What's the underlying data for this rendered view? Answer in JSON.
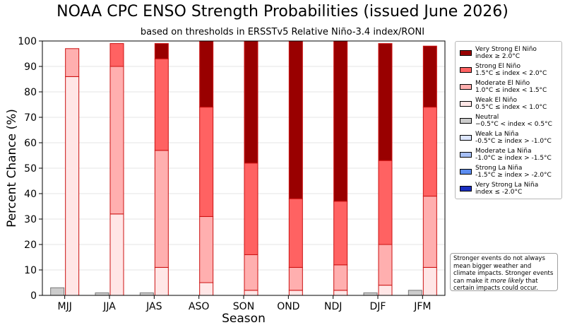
{
  "chart_data": {
    "type": "bar",
    "stacked": true,
    "title": "NOAA CPC ENSO Strength Probabilities (issued June 2026)",
    "subtitle": "based on thresholds in ERSSTv5 Relative Niño-3.4 index/RONI",
    "xlabel": "Season",
    "ylabel": "Percent Chance (%)",
    "ylim": [
      0,
      100
    ],
    "yticks": [
      "0",
      "10",
      "20",
      "30",
      "40",
      "50",
      "60",
      "70",
      "80",
      "90",
      "100"
    ],
    "grid": true,
    "legend_position": "right",
    "categories": [
      "MJJ",
      "JJA",
      "JAS",
      "ASO",
      "SON",
      "OND",
      "NDJ",
      "DJF",
      "JFM"
    ],
    "neutral": {
      "name": "Neutral",
      "range": "−0.5°C < index < 0.5°C",
      "color": "#cccccc",
      "values": [
        3,
        1,
        1,
        0,
        0,
        0,
        0,
        1,
        2
      ]
    },
    "el_nino_stacks": [
      {
        "name": "Weak El Niño",
        "range": "0.5°C ≤ index < 1.0°C",
        "color": "#ffe6e6",
        "values": [
          86,
          32,
          11,
          5,
          2,
          2,
          2,
          4,
          11
        ]
      },
      {
        "name": "Moderate El Niño",
        "range": "1.0°C ≤ index < 1.5°C",
        "color": "#ffafaf",
        "values": [
          11,
          58,
          46,
          26,
          14,
          9,
          10,
          16,
          28
        ]
      },
      {
        "name": "Strong El Niño",
        "range": "1.5°C ≤ index < 2.0°C",
        "color": "#ff6262",
        "values": [
          0,
          9,
          36,
          43,
          36,
          27,
          25,
          33,
          35
        ]
      },
      {
        "name": "Very Strong El Niño",
        "range": "index ≥ 2.0°C",
        "color": "#990000",
        "values": [
          0,
          0,
          6,
          26,
          48,
          62,
          63,
          46,
          24
        ]
      }
    ],
    "la_nina": [
      {
        "name": "Weak La Niña",
        "range": "-0.5°C ≥ index > -1.0°C",
        "color": "#dde6ff",
        "values": [
          0,
          0,
          0,
          0,
          0,
          0,
          0,
          0,
          0
        ]
      },
      {
        "name": "Moderate La Niña",
        "range": "-1.0°C ≥ index > -1.5°C",
        "color": "#a6bff5",
        "values": [
          0,
          0,
          0,
          0,
          0,
          0,
          0,
          0,
          0
        ]
      },
      {
        "name": "Strong La Niña",
        "range": "-1.5°C ≥ index > -2.0°C",
        "color": "#5b8cf0",
        "values": [
          0,
          0,
          0,
          0,
          0,
          0,
          0,
          0,
          0
        ]
      },
      {
        "name": "Very Strong La Niña",
        "range": "index ≤ -2.0°C",
        "color": "#1a2fc0",
        "values": [
          0,
          0,
          0,
          0,
          0,
          0,
          0,
          0,
          0
        ]
      }
    ]
  },
  "legend": [
    {
      "name": "Very Strong El Niño",
      "range": "index ≥ 2.0°C",
      "color": "#990000"
    },
    {
      "name": "Strong El Niño",
      "range": "1.5°C ≤ index < 2.0°C",
      "color": "#ff6262"
    },
    {
      "name": "Moderate El Niño",
      "range": "1.0°C ≤ index < 1.5°C",
      "color": "#ffafaf"
    },
    {
      "name": "Weak El Niño",
      "range": "0.5°C ≤ index < 1.0°C",
      "color": "#ffe6e6"
    },
    {
      "name": "Neutral",
      "range": "−0.5°C < index < 0.5°C",
      "color": "#cccccc"
    },
    {
      "name": "Weak La Niña",
      "range": "-0.5°C ≥ index > -1.0°C",
      "color": "#dde6ff"
    },
    {
      "name": "Moderate La Niña",
      "range": "-1.0°C ≥ index > -1.5°C",
      "color": "#a6bff5"
    },
    {
      "name": "Strong La Niña",
      "range": "-1.5°C ≥ index > -2.0°C",
      "color": "#5b8cf0"
    },
    {
      "name": "Very Strong La Niña",
      "range": "index ≤ -2.0°C",
      "color": "#1a2fc0"
    }
  ],
  "note": {
    "before": "Stronger events do not always mean bigger weather and climate impacts. Stronger events can make it ",
    "emphasis": "more likely",
    "after": " that certain impacts could occur."
  }
}
